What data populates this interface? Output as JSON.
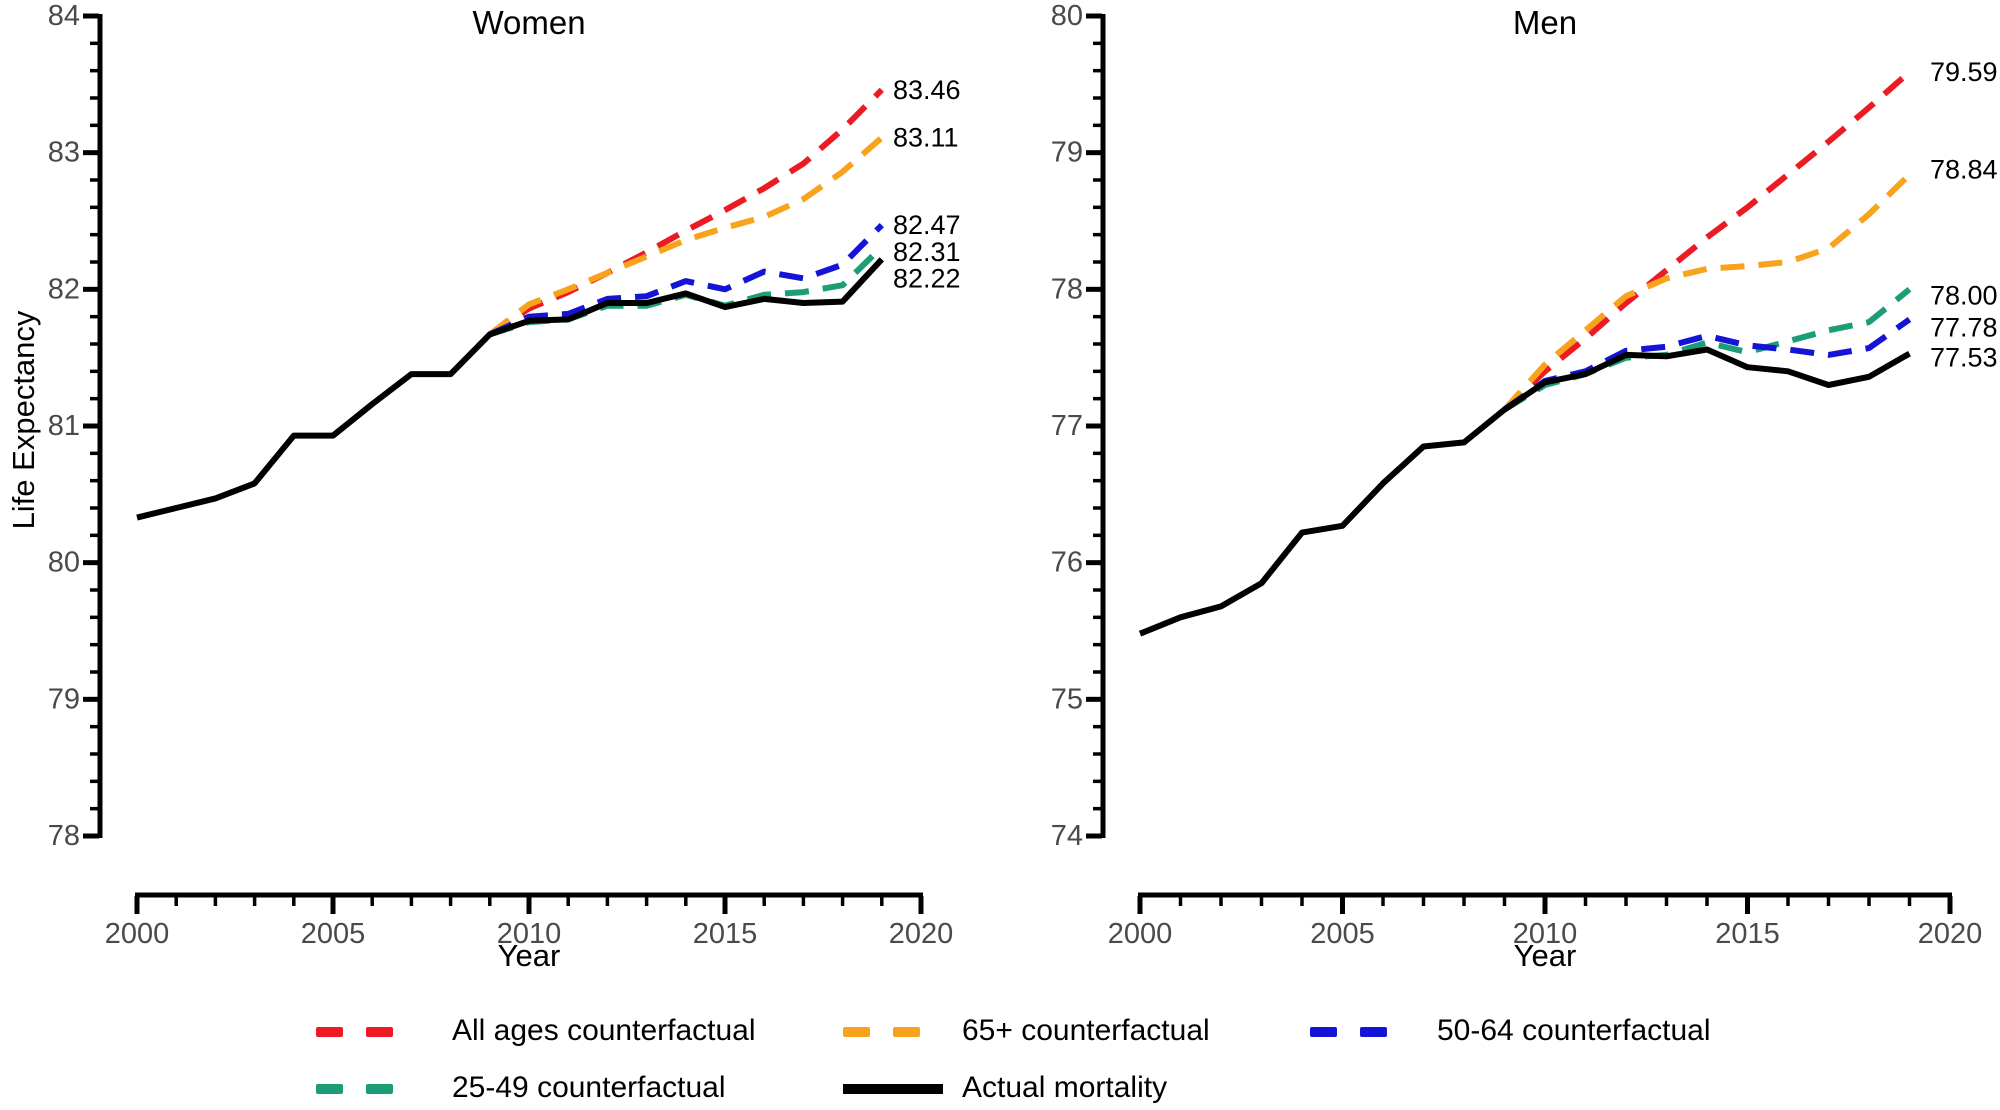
{
  "figure": {
    "ylabel": "Life Expectancy",
    "xlabel": "Year",
    "background": "#ffffff",
    "tick_label_color": "#4a4a4a",
    "text_color": "#000000"
  },
  "colors": {
    "all_ages": "#ec1b23",
    "age65plus": "#f9a21b",
    "age50_64": "#1414d6",
    "age25_49": "#1b9e77",
    "actual": "#000000"
  },
  "legend": {
    "rows": [
      {
        "items": [
          {
            "key": "all_ages",
            "dash": true,
            "label": "All ages counterfactual"
          },
          {
            "key": "age65plus",
            "dash": true,
            "label": "65+ counterfactual"
          },
          {
            "key": "age50_64",
            "dash": true,
            "label": "50-64 counterfactual"
          }
        ]
      },
      {
        "items": [
          {
            "key": "age25_49",
            "dash": true,
            "label": "25-49 counterfactual"
          },
          {
            "key": "actual",
            "dash": false,
            "label": "Actual mortality"
          }
        ]
      }
    ]
  },
  "chart_data": [
    {
      "type": "line",
      "title": "Women",
      "xlabel": "Year",
      "ylabel": "Life Expectancy",
      "xlim": [
        2000,
        2020
      ],
      "ylim": [
        78,
        84
      ],
      "yticks": [
        78,
        79,
        80,
        81,
        82,
        83,
        84
      ],
      "xticks": [
        2000,
        2005,
        2010,
        2015,
        2020
      ],
      "minor_y_step": 0.2,
      "minor_x_step": 1,
      "grid": false,
      "series": [
        {
          "name": "All ages counterfactual",
          "key": "all_ages",
          "style": "dashed",
          "start_year": 2009,
          "values": [
            81.67,
            81.86,
            81.98,
            82.12,
            82.27,
            82.43,
            82.58,
            82.74,
            82.92,
            83.17,
            83.46
          ],
          "end_label": "83.46"
        },
        {
          "name": "65+ counterfactual",
          "key": "age65plus",
          "style": "dashed",
          "start_year": 2009,
          "values": [
            81.67,
            81.89,
            82.0,
            82.12,
            82.24,
            82.36,
            82.45,
            82.53,
            82.66,
            82.86,
            83.11
          ],
          "end_label": "83.11"
        },
        {
          "name": "25-49 counterfactual",
          "key": "age25_49",
          "style": "dashed",
          "start_year": 2009,
          "values": [
            81.67,
            81.76,
            81.78,
            81.88,
            81.88,
            81.96,
            81.88,
            81.96,
            81.98,
            82.03,
            82.31
          ],
          "end_label": "82.31"
        },
        {
          "name": "50-64 counterfactual",
          "key": "age50_64",
          "style": "dashed",
          "start_year": 2009,
          "values": [
            81.67,
            81.8,
            81.82,
            81.93,
            81.95,
            82.06,
            82.0,
            82.13,
            82.08,
            82.18,
            82.47
          ],
          "end_label": "82.47"
        },
        {
          "name": "Actual mortality",
          "key": "actual",
          "style": "solid",
          "start_year": 2000,
          "values": [
            80.33,
            80.4,
            80.47,
            80.58,
            80.93,
            80.93,
            81.16,
            81.38,
            81.38,
            81.67,
            81.77,
            81.78,
            81.9,
            81.9,
            81.97,
            81.87,
            81.93,
            81.9,
            81.91,
            82.22
          ],
          "end_label": "82.22"
        }
      ]
    },
    {
      "type": "line",
      "title": "Men",
      "xlabel": "Year",
      "ylabel": "Life Expectancy",
      "xlim": [
        2000,
        2020
      ],
      "ylim": [
        74,
        80
      ],
      "yticks": [
        74,
        75,
        76,
        77,
        78,
        79,
        80
      ],
      "xticks": [
        2000,
        2005,
        2010,
        2015,
        2020
      ],
      "minor_y_step": 0.2,
      "minor_x_step": 1,
      "grid": false,
      "series": [
        {
          "name": "All ages counterfactual",
          "key": "all_ages",
          "style": "dashed",
          "start_year": 2009,
          "values": [
            77.12,
            77.4,
            77.64,
            77.9,
            78.14,
            78.38,
            78.6,
            78.84,
            79.08,
            79.33,
            79.59
          ],
          "end_label": "79.59"
        },
        {
          "name": "65+ counterfactual",
          "key": "age65plus",
          "style": "dashed",
          "start_year": 2009,
          "values": [
            77.12,
            77.45,
            77.7,
            77.95,
            78.08,
            78.15,
            78.17,
            78.2,
            78.3,
            78.55,
            78.84
          ],
          "end_label": "78.84"
        },
        {
          "name": "25-49 counterfactual",
          "key": "age25_49",
          "style": "dashed",
          "start_year": 2009,
          "values": [
            77.12,
            77.3,
            77.38,
            77.5,
            77.52,
            77.61,
            77.54,
            77.62,
            77.7,
            77.76,
            78.0
          ],
          "end_label": "78.00"
        },
        {
          "name": "50-64 counterfactual",
          "key": "age50_64",
          "style": "dashed",
          "start_year": 2009,
          "values": [
            77.12,
            77.33,
            77.4,
            77.55,
            77.58,
            77.66,
            77.59,
            77.56,
            77.52,
            77.57,
            77.78
          ],
          "end_label": "77.78"
        },
        {
          "name": "Actual mortality",
          "key": "actual",
          "style": "solid",
          "start_year": 2000,
          "values": [
            75.48,
            75.6,
            75.68,
            75.85,
            76.22,
            76.27,
            76.58,
            76.85,
            76.88,
            77.12,
            77.32,
            77.38,
            77.52,
            77.51,
            77.56,
            77.43,
            77.4,
            77.3,
            77.36,
            77.53
          ],
          "end_label": "77.53"
        }
      ]
    }
  ]
}
